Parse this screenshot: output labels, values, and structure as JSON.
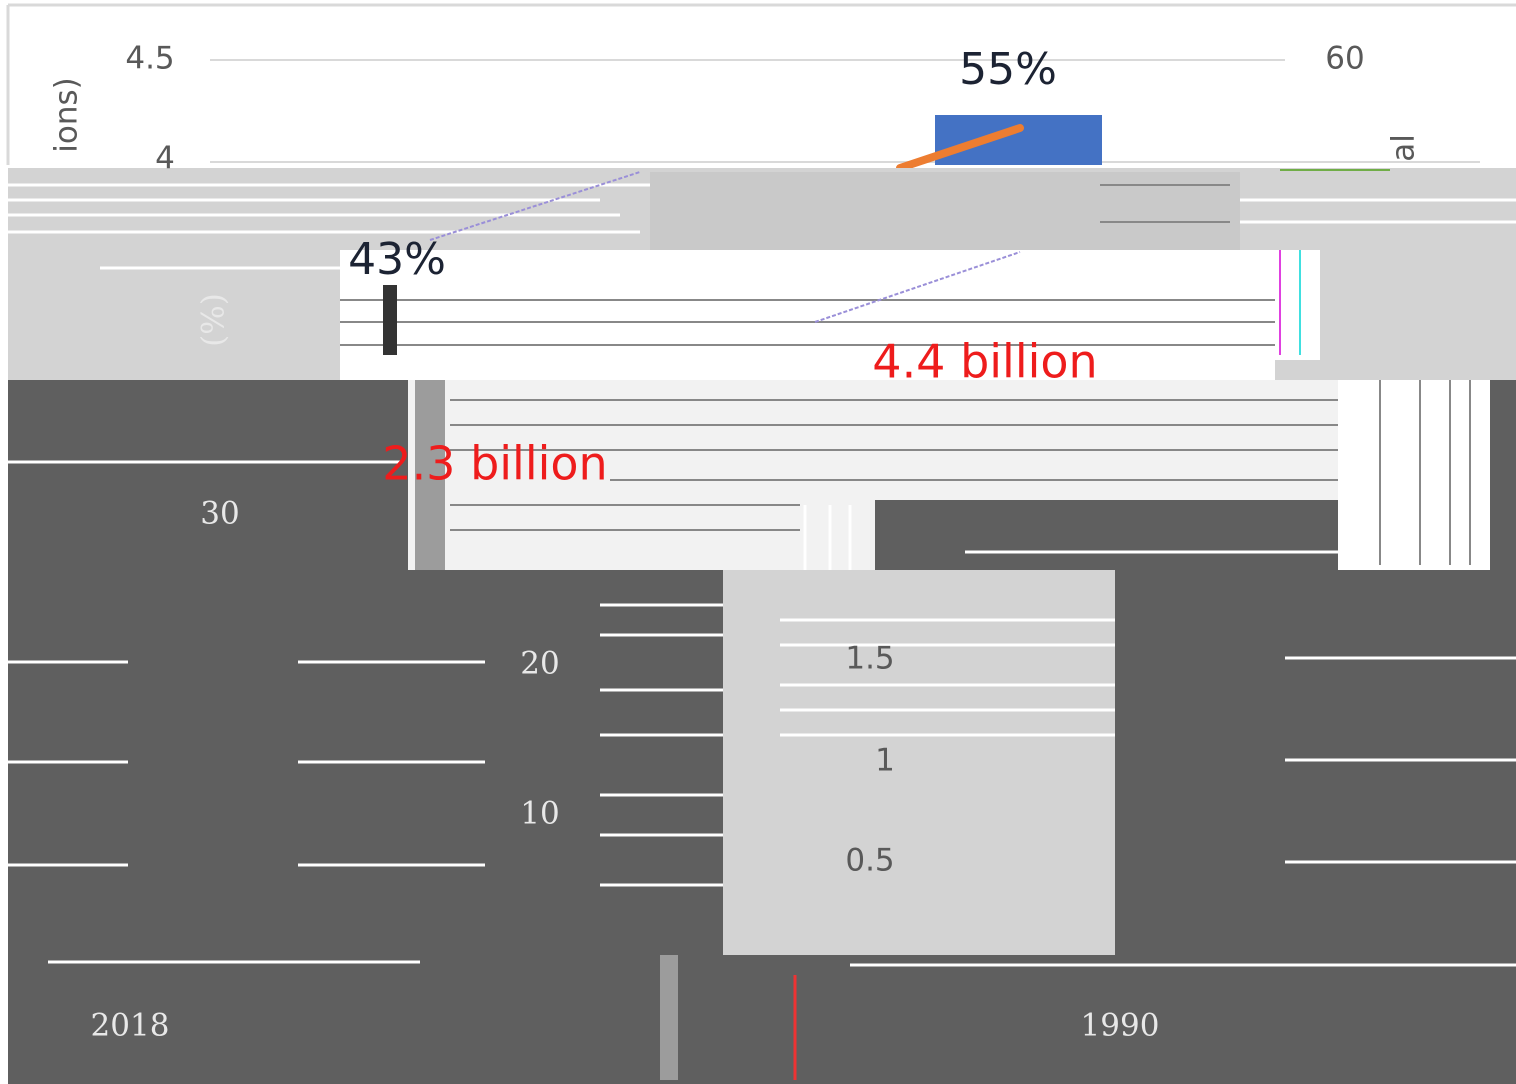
{
  "axis_titles": {
    "left": "ions)",
    "right": "al",
    "percent": "(%)"
  },
  "left_ticks": [
    "4.5",
    "4"
  ],
  "right_ticks": [
    "60"
  ],
  "shares": [
    "55%",
    "43%"
  ],
  "populations": [
    "4.4 billion",
    "2.3 billion"
  ],
  "inner_ticks": [
    "30",
    "20",
    "10"
  ],
  "global_ticks": [
    "1.5",
    "1",
    "0.5"
  ],
  "years": [
    "2018",
    "1990"
  ]
}
